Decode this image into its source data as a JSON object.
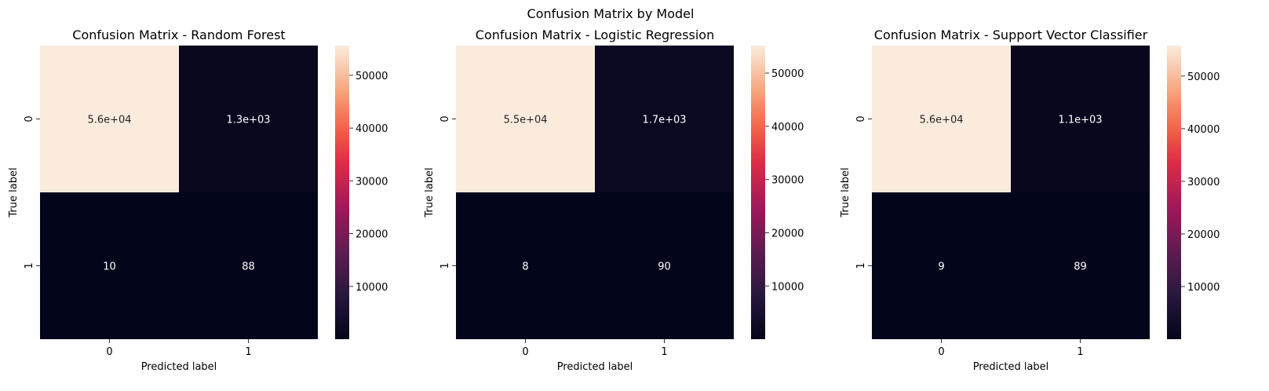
{
  "suptitle": "Confusion Matrix by Model",
  "colors": {
    "colormap": "rocket",
    "text_light": "#ffffff",
    "text_dark": "#262626"
  },
  "chart_data": [
    {
      "type": "heatmap",
      "title": "Confusion Matrix - Random Forest",
      "xlabel": "Predicted label",
      "ylabel": "True label",
      "x_categories": [
        "0",
        "1"
      ],
      "y_categories": [
        "0",
        "1"
      ],
      "values": [
        [
          55640,
          1300
        ],
        [
          10,
          88
        ]
      ],
      "annotations": [
        [
          "5.6e+04",
          "1.3e+03"
        ],
        [
          "10",
          "88"
        ]
      ],
      "vmin": 10,
      "vmax": 55640,
      "colorbar_ticks": [
        10000,
        20000,
        30000,
        40000,
        50000
      ]
    },
    {
      "type": "heatmap",
      "title": "Confusion Matrix - Logistic Regression",
      "xlabel": "Predicted label",
      "ylabel": "True label",
      "x_categories": [
        "0",
        "1"
      ],
      "y_categories": [
        "0",
        "1"
      ],
      "values": [
        [
          55170,
          1700
        ],
        [
          8,
          90
        ]
      ],
      "annotations": [
        [
          "5.5e+04",
          "1.7e+03"
        ],
        [
          "8",
          "90"
        ]
      ],
      "vmin": 8,
      "vmax": 55170,
      "colorbar_ticks": [
        10000,
        20000,
        30000,
        40000,
        50000
      ]
    },
    {
      "type": "heatmap",
      "title": "Confusion Matrix - Support Vector Classifier",
      "xlabel": "Predicted label",
      "ylabel": "True label",
      "x_categories": [
        "0",
        "1"
      ],
      "y_categories": [
        "0",
        "1"
      ],
      "values": [
        [
          55790,
          1100
        ],
        [
          9,
          89
        ]
      ],
      "annotations": [
        [
          "5.6e+04",
          "1.1e+03"
        ],
        [
          "9",
          "89"
        ]
      ],
      "vmin": 9,
      "vmax": 55790,
      "colorbar_ticks": [
        10000,
        20000,
        30000,
        40000,
        50000
      ]
    }
  ]
}
